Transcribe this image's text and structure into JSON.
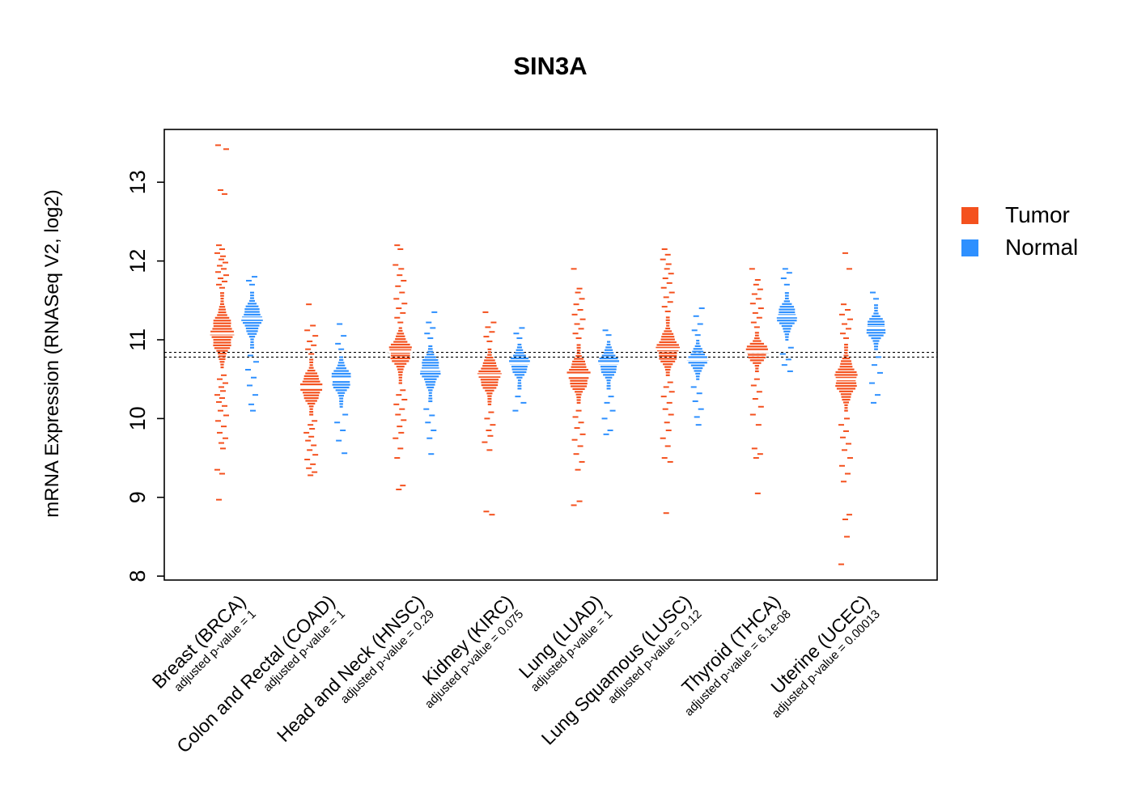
{
  "chart_data": {
    "type": "violin",
    "title": "SIN3A",
    "ylabel": "mRNA Expression (RNASeq V2, log2)",
    "yticks": [
      8,
      9,
      10,
      11,
      12,
      13
    ],
    "ylim": [
      7.95,
      13.67
    ],
    "grid": false,
    "reference_lines": [
      10.78,
      10.84
    ],
    "reference_line_style": "dashed",
    "legend_position": "right",
    "legend": [
      {
        "label": "Tumor",
        "color": "#F4511E"
      },
      {
        "label": "Normal",
        "color": "#2E90FF"
      }
    ],
    "categories": [
      {
        "name": "Breast (BRCA)",
        "pvalue_label": "adjusted p-value = 1",
        "tumor": {
          "median": 11.08,
          "body_low": 10.65,
          "body_high": 11.62,
          "outliers_high": [
            11.66,
            11.7,
            11.74,
            11.78,
            11.82,
            11.86,
            11.9,
            11.94,
            11.98,
            12.02,
            12.06,
            12.1,
            12.15,
            12.2,
            12.85,
            12.9,
            13.42,
            13.47
          ],
          "outliers_low": [
            10.55,
            10.5,
            10.45,
            10.4,
            10.35,
            10.3,
            10.26,
            10.21,
            10.16,
            10.1,
            10.04,
            9.97,
            9.9,
            9.82,
            9.75,
            9.69,
            9.62,
            9.35,
            9.3,
            8.97
          ]
        },
        "normal": {
          "median": 11.27,
          "body_low": 10.9,
          "body_high": 11.62,
          "outliers_high": [
            11.7,
            11.75,
            11.8
          ],
          "outliers_low": [
            10.8,
            10.72,
            10.62,
            10.52,
            10.42,
            10.3,
            10.18,
            10.1
          ]
        }
      },
      {
        "name": "Colon and Rectal (COAD)",
        "pvalue_label": "adjusted p-value = 1",
        "tumor": {
          "median": 10.4,
          "body_low": 10.05,
          "body_high": 10.75,
          "outliers_high": [
            10.82,
            10.88,
            10.93,
            10.98,
            11.05,
            11.12,
            11.18,
            11.45
          ],
          "outliers_low": [
            9.97,
            9.92,
            9.87,
            9.82,
            9.77,
            9.72,
            9.66,
            9.6,
            9.54,
            9.48,
            9.42,
            9.37,
            9.32,
            9.28
          ]
        },
        "normal": {
          "median": 10.5,
          "body_low": 10.15,
          "body_high": 10.8,
          "outliers_high": [
            10.88,
            10.95,
            11.05,
            11.2
          ],
          "outliers_low": [
            10.05,
            9.95,
            9.85,
            9.72,
            9.56
          ]
        }
      },
      {
        "name": "Head and Neck (HNSC)",
        "pvalue_label": "adjusted p-value = 0.29",
        "tumor": {
          "median": 10.85,
          "body_low": 10.45,
          "body_high": 11.15,
          "outliers_high": [
            11.22,
            11.28,
            11.34,
            11.4,
            11.46,
            11.52,
            11.6,
            11.68,
            11.75,
            11.82,
            11.9,
            11.95,
            12.15,
            12.2
          ],
          "outliers_low": [
            10.36,
            10.3,
            10.24,
            10.18,
            10.12,
            10.05,
            9.98,
            9.9,
            9.82,
            9.75,
            9.62,
            9.5,
            9.15,
            9.1
          ]
        },
        "normal": {
          "median": 10.62,
          "body_low": 10.22,
          "body_high": 10.95,
          "outliers_high": [
            11.02,
            11.08,
            11.15,
            11.22,
            11.35
          ],
          "outliers_low": [
            10.12,
            10.04,
            9.95,
            9.85,
            9.75,
            9.55
          ]
        }
      },
      {
        "name": "Kidney (KIRC)",
        "pvalue_label": "adjusted p-value = 0.075",
        "tumor": {
          "median": 10.55,
          "body_low": 10.18,
          "body_high": 10.9,
          "outliers_high": [
            10.98,
            11.04,
            11.1,
            11.16,
            11.22,
            11.35
          ],
          "outliers_low": [
            10.08,
            10.0,
            9.92,
            9.85,
            9.78,
            9.7,
            9.6,
            8.82,
            8.78
          ]
        },
        "normal": {
          "median": 10.7,
          "body_low": 10.38,
          "body_high": 10.95,
          "outliers_high": [
            11.02,
            11.08,
            11.15
          ],
          "outliers_low": [
            10.28,
            10.2,
            10.1
          ]
        }
      },
      {
        "name": "Lung (LUAD)",
        "pvalue_label": "adjusted p-value = 1",
        "tumor": {
          "median": 10.55,
          "body_low": 10.2,
          "body_high": 10.95,
          "outliers_high": [
            11.02,
            11.08,
            11.14,
            11.2,
            11.26,
            11.32,
            11.38,
            11.45,
            11.52,
            11.6,
            11.65,
            11.9
          ],
          "outliers_low": [
            10.1,
            10.02,
            9.95,
            9.88,
            9.8,
            9.73,
            9.65,
            9.55,
            9.45,
            9.35,
            8.95,
            8.9
          ]
        },
        "normal": {
          "median": 10.7,
          "body_low": 10.38,
          "body_high": 11.0,
          "outliers_high": [
            11.06,
            11.12
          ],
          "outliers_low": [
            10.28,
            10.2,
            10.1,
            10.0,
            9.85,
            9.8
          ]
        }
      },
      {
        "name": "Lung Squamous (LUSC)",
        "pvalue_label": "adjusted p-value = 0.12",
        "tumor": {
          "median": 10.88,
          "body_low": 10.55,
          "body_high": 11.3,
          "outliers_high": [
            11.36,
            11.42,
            11.48,
            11.54,
            11.6,
            11.66,
            11.72,
            11.78,
            11.84,
            11.9,
            11.96,
            12.02,
            12.08,
            12.15
          ],
          "outliers_low": [
            10.46,
            10.4,
            10.34,
            10.28,
            10.2,
            10.12,
            10.05,
            9.95,
            9.85,
            9.75,
            9.65,
            9.5,
            9.45,
            8.8
          ]
        },
        "normal": {
          "median": 10.75,
          "body_low": 10.5,
          "body_high": 11.0,
          "outliers_high": [
            11.06,
            11.12,
            11.2,
            11.3,
            11.4
          ],
          "outliers_low": [
            10.4,
            10.32,
            10.22,
            10.12,
            10.02,
            9.92
          ]
        }
      },
      {
        "name": "Thyroid (THCA)",
        "pvalue_label": "adjusted p-value = 6.1e-08",
        "tumor": {
          "median": 10.85,
          "body_low": 10.6,
          "body_high": 11.1,
          "outliers_high": [
            11.16,
            11.22,
            11.28,
            11.34,
            11.4,
            11.46,
            11.52,
            11.58,
            11.64,
            11.7,
            11.76,
            11.9
          ],
          "outliers_low": [
            10.5,
            10.42,
            10.34,
            10.25,
            10.15,
            10.05,
            9.92,
            9.62,
            9.55,
            9.5,
            9.05
          ]
        },
        "normal": {
          "median": 11.3,
          "body_low": 11.0,
          "body_high": 11.62,
          "outliers_high": [
            11.7,
            11.78,
            11.85,
            11.9
          ],
          "outliers_low": [
            10.9,
            10.82,
            10.75,
            10.68,
            10.6
          ]
        }
      },
      {
        "name": "Uterine (UCEC)",
        "pvalue_label": "adjusted p-value = 0.00013",
        "tumor": {
          "median": 10.5,
          "body_low": 10.1,
          "body_high": 10.95,
          "outliers_high": [
            11.02,
            11.08,
            11.14,
            11.2,
            11.26,
            11.32,
            11.38,
            11.45,
            11.9,
            12.1
          ],
          "outliers_low": [
            10.0,
            9.92,
            9.84,
            9.76,
            9.68,
            9.6,
            9.5,
            9.4,
            9.3,
            9.2,
            8.78,
            8.72,
            8.5,
            8.15
          ]
        },
        "normal": {
          "median": 11.15,
          "body_low": 10.88,
          "body_high": 11.45,
          "outliers_high": [
            11.52,
            11.6
          ],
          "outliers_low": [
            10.78,
            10.68,
            10.58,
            10.45,
            10.3,
            10.2
          ]
        }
      }
    ]
  }
}
